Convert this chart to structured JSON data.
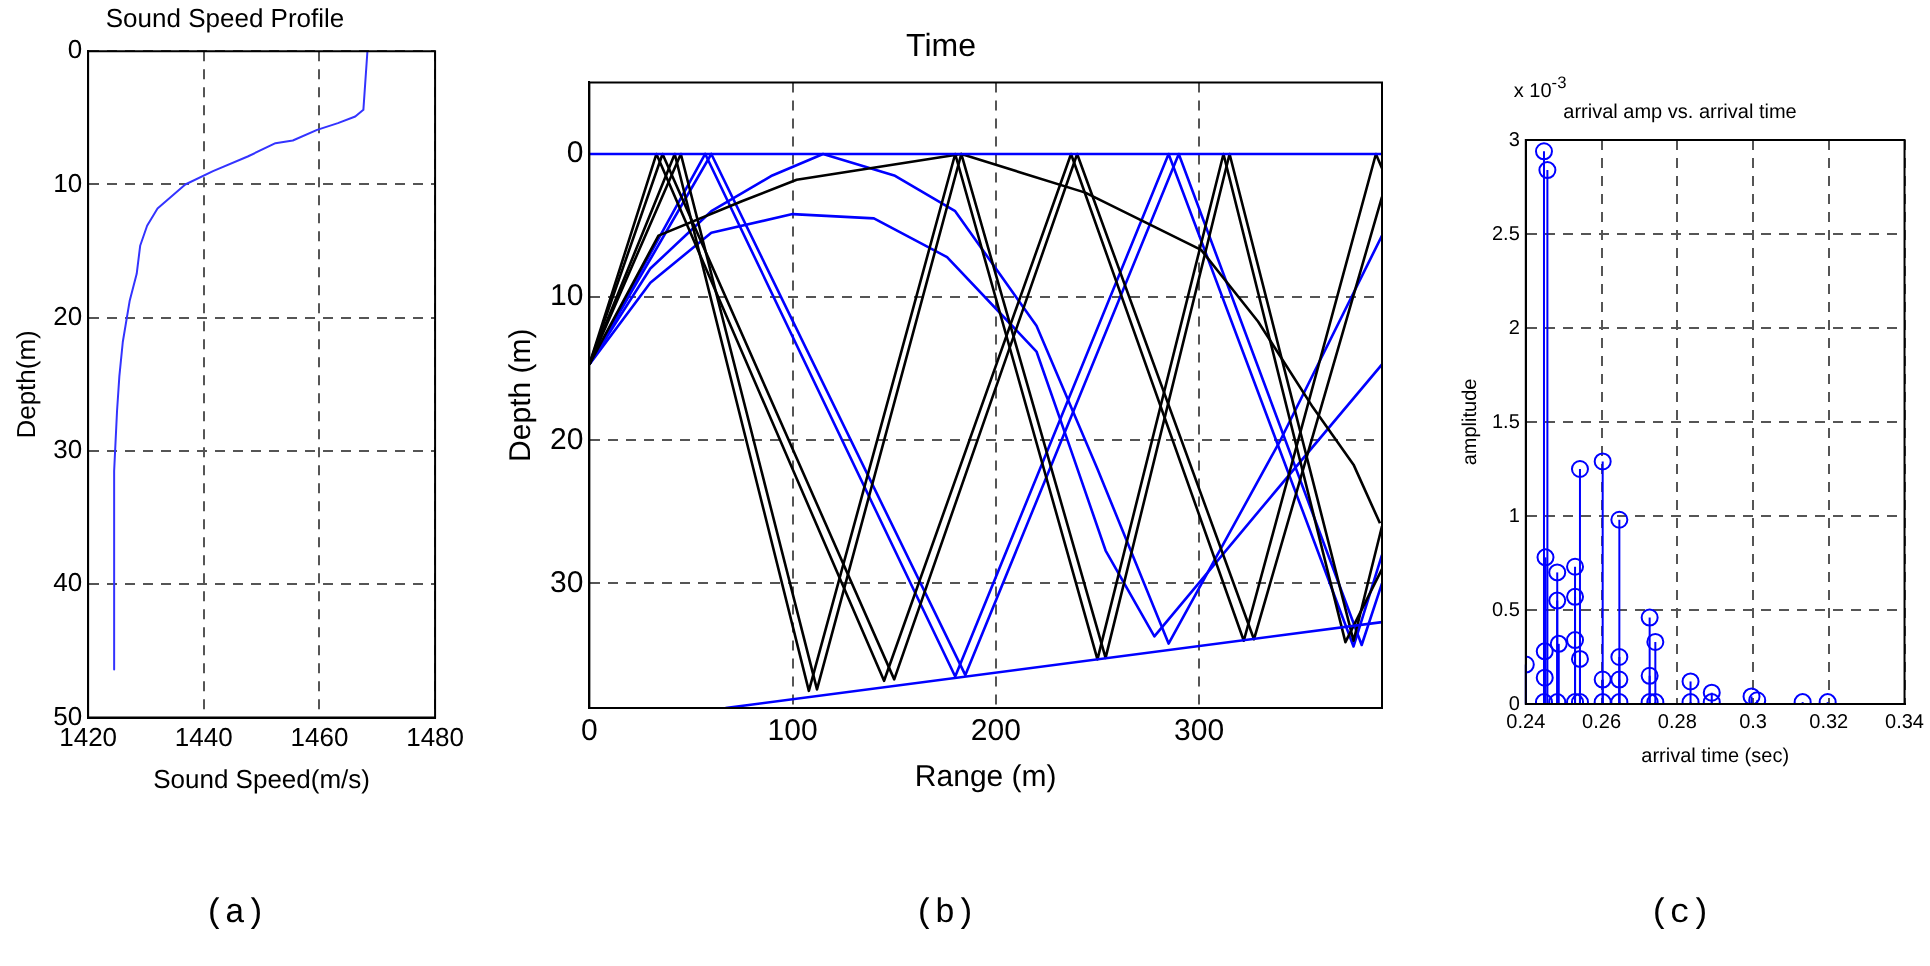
{
  "chart_data": [
    {
      "type": "line",
      "title": "Sound Speed Profile",
      "xlabel": "Sound Speed(m/s)",
      "ylabel": "Depth(m)",
      "x": [
        1468.3,
        1467.6,
        1466.2,
        1463.2,
        1459.6,
        1455.4,
        1452.4,
        1447.6,
        1441.6,
        1436.8,
        1432,
        1430.2,
        1429,
        1428.4,
        1427.2,
        1426,
        1425.4,
        1425,
        1424.5,
        1424.5
      ],
      "values": [
        0,
        4.4,
        4.9,
        5.4,
        5.9,
        6.7,
        6.9,
        7.9,
        9,
        10,
        11.8,
        13.1,
        14.6,
        16.7,
        18.7,
        21.8,
        24.4,
        27,
        31.5,
        46.4
      ],
      "color": "#3333ff",
      "xlim": [
        1420,
        1480
      ],
      "xticks": [
        1420,
        1440,
        1460,
        1480
      ],
      "ylim": [
        50,
        0
      ],
      "yticks": [
        0,
        10,
        20,
        30,
        40,
        50
      ],
      "grid": true,
      "annotations": [
        "(a)"
      ]
    },
    {
      "type": "line",
      "title": "Time",
      "xlabel": "Range (m)",
      "ylabel": "Depth (m)",
      "series": [
        {
          "color": "#0000ff",
          "x": [
            0,
            390
          ],
          "values": [
            0,
            0
          ]
        },
        {
          "color": "#0000ff",
          "x": [
            67,
            390
          ],
          "values": [
            38.7,
            32.7
          ]
        },
        {
          "color": "#000000",
          "x": [
            0,
            45,
            112,
            183,
            254,
            315,
            376,
            390
          ],
          "values": [
            14.7,
            0,
            37.4,
            0,
            35.2,
            0,
            34,
            26
          ]
        },
        {
          "color": "#000000",
          "x": [
            0,
            42,
            108,
            180,
            250,
            312,
            372,
            390
          ],
          "values": [
            14.7,
            0,
            37.5,
            0,
            35.3,
            0,
            34.1,
            29
          ]
        },
        {
          "color": "#000000",
          "x": [
            0,
            33,
            145,
            237,
            322,
            387,
            390
          ],
          "values": [
            14.7,
            0,
            36.8,
            0,
            34,
            0,
            1
          ]
        },
        {
          "color": "#000000",
          "x": [
            0,
            36,
            150,
            240,
            327,
            390
          ],
          "values": [
            14.7,
            0,
            36.7,
            0,
            33.9,
            3
          ]
        },
        {
          "color": "#000000",
          "x": [
            0,
            34,
            75,
            102,
            183,
            244,
            301,
            329,
            356,
            376,
            389
          ],
          "values": [
            14.7,
            5.7,
            3.3,
            1.8,
            0,
            2.7,
            6.7,
            11.7,
            17.7,
            21.7,
            25.8
          ]
        },
        {
          "color": "#0000ff",
          "x": [
            0,
            57,
            180,
            285,
            376,
            390
          ],
          "values": [
            14.7,
            0,
            36.5,
            0,
            34.4,
            28
          ]
        },
        {
          "color": "#0000ff",
          "x": [
            0,
            60,
            185,
            290,
            380,
            390
          ],
          "values": [
            14.7,
            0,
            36.4,
            0,
            34.3,
            30
          ]
        },
        {
          "color": "#0000ff",
          "x": [
            0,
            30,
            60,
            90,
            115,
            150,
            180,
            220,
            250,
            285,
            340,
            390
          ],
          "values": [
            14.7,
            8,
            4,
            1.5,
            0,
            1.5,
            4,
            12,
            22,
            34.2,
            20,
            5.7
          ]
        },
        {
          "color": "#0000ff",
          "x": [
            0,
            30,
            60,
            100,
            140,
            176,
            220,
            237,
            254,
            278,
            335,
            390
          ],
          "values": [
            14.7,
            9,
            5.5,
            4.2,
            4.5,
            7.2,
            13.8,
            20.7,
            27.7,
            33.7,
            24,
            14.7
          ]
        }
      ],
      "xlim": [
        0,
        390
      ],
      "xticks": [
        0,
        100,
        200,
        300
      ],
      "ylim": [
        38.7,
        -5
      ],
      "yticks": [
        0,
        10,
        20,
        30
      ],
      "grid": true,
      "annotations": [
        "(b)"
      ]
    },
    {
      "type": "lollipop",
      "title": "arrival amp vs. arrival time",
      "xlabel": "arrival time (sec)",
      "ylabel": "amplitude",
      "x": [
        0.24,
        0.2448,
        0.2457,
        0.2452,
        0.245,
        0.245,
        0.2483,
        0.2483,
        0.2487,
        0.253,
        0.253,
        0.253,
        0.2543,
        0.2543,
        0.2603,
        0.2603,
        0.2647,
        0.2647,
        0.2647,
        0.2727,
        0.2727,
        0.2742,
        0.2835,
        0.2891,
        0.2996,
        0.3011,
        0.3131,
        0.3197,
        0.2448,
        0.2483,
        0.253,
        0.2543,
        0.2603,
        0.2647,
        0.2727,
        0.2742,
        0.2835,
        0.2891
      ],
      "values": [
        0.21,
        2.94,
        2.84,
        0.78,
        0.28,
        0.14,
        0.7,
        0.55,
        0.32,
        0.73,
        0.57,
        0.34,
        1.25,
        0.24,
        1.29,
        0.13,
        0.98,
        0.25,
        0.13,
        0.46,
        0.15,
        0.33,
        0.12,
        0.06,
        0.04,
        0.02,
        0.01,
        0.01,
        0.01,
        0.01,
        0.01,
        0.01,
        0.01,
        0.01,
        0.01,
        0.01,
        0.01,
        0.01
      ],
      "color": "#0000ff",
      "marker": "circle",
      "xlim": [
        0.24,
        0.34
      ],
      "xticks": [
        0.24,
        0.26,
        0.28,
        0.3,
        0.32,
        0.34
      ],
      "ylim": [
        0,
        3
      ],
      "yticks": [
        0,
        0.5,
        1,
        1.5,
        2,
        2.5,
        3
      ],
      "grid": true,
      "annotations": [
        "x 10$^{-3}$",
        "(c)"
      ]
    }
  ]
}
